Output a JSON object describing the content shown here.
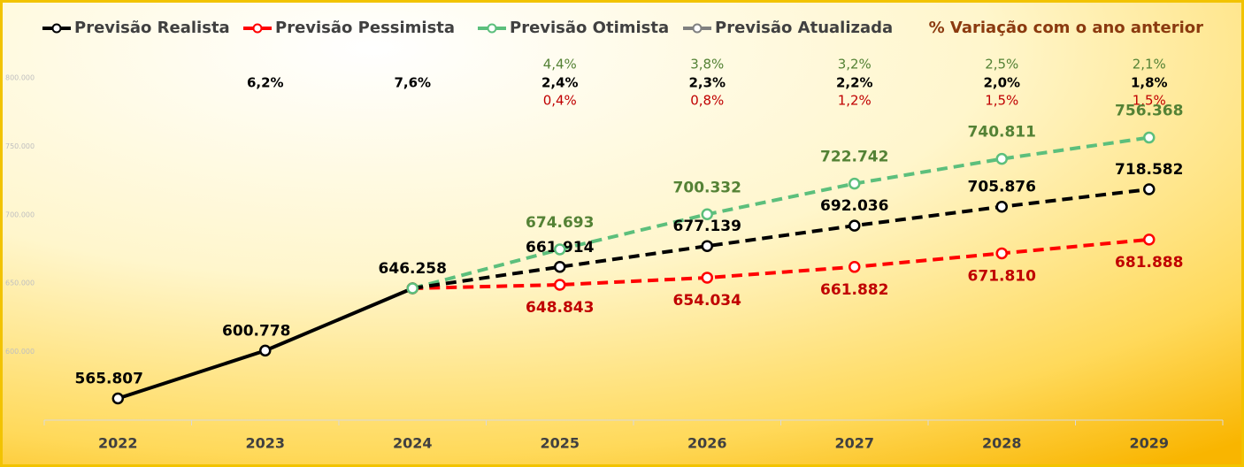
{
  "chart_data": {
    "type": "line",
    "categories": [
      "2022",
      "2023",
      "2024",
      "2025",
      "2026",
      "2027",
      "2028",
      "2029"
    ],
    "series": [
      {
        "name": "Previsão Realista",
        "color": "#000000",
        "label_color": "#000000",
        "values": [
          565807,
          600778,
          646258,
          661914,
          677139,
          692036,
          705876,
          718582
        ],
        "value_labels": [
          "565.807",
          "600.778",
          "646.258",
          "661.914",
          "677.139",
          "692.036",
          "705.876",
          "718.582"
        ]
      },
      {
        "name": "Previsão Pessimista",
        "color": "#ff0000",
        "label_color": "#c00000",
        "values": [
          null,
          null,
          646258,
          648843,
          654034,
          661882,
          671810,
          681888
        ],
        "value_labels": [
          null,
          null,
          null,
          "648.843",
          "654.034",
          "661.882",
          "671.810",
          "681.888"
        ]
      },
      {
        "name": "Previsão Otimista",
        "color": "#5cbf7c",
        "label_color": "#548235",
        "values": [
          null,
          null,
          646258,
          674693,
          700332,
          722742,
          740811,
          756368
        ],
        "value_labels": [
          null,
          null,
          null,
          "674.693",
          "700.332",
          "722.742",
          "740.811",
          "756.368"
        ]
      },
      {
        "name": "Previsão Atualizada",
        "color": "#808080",
        "label_color": "#808080",
        "values": [
          null,
          null,
          null,
          null,
          null,
          null,
          null,
          null
        ]
      }
    ],
    "variation": {
      "title": "% Variação com o ano anterior",
      "rows": [
        {
          "series": 2,
          "labels": [
            null,
            null,
            null,
            "4,4%",
            "3,8%",
            "3,2%",
            "2,5%",
            "2,1%"
          ]
        },
        {
          "series": 0,
          "labels": [
            null,
            "6,2%",
            "7,6%",
            "2,4%",
            "2,3%",
            "2,2%",
            "2,0%",
            "1,8%"
          ]
        },
        {
          "series": 1,
          "labels": [
            null,
            null,
            null,
            "0,4%",
            "0,8%",
            "1,2%",
            "1,5%",
            "1,5%"
          ]
        }
      ]
    },
    "ylim": [
      550000,
      800000
    ],
    "yticks": [
      {
        "value": 600000,
        "label": "600.000"
      },
      {
        "value": 650000,
        "label": "650.000"
      },
      {
        "value": 700000,
        "label": "700.000"
      },
      {
        "value": 750000,
        "label": "750.000"
      },
      {
        "value": 800000,
        "label": "800.000"
      }
    ],
    "grid": false
  }
}
